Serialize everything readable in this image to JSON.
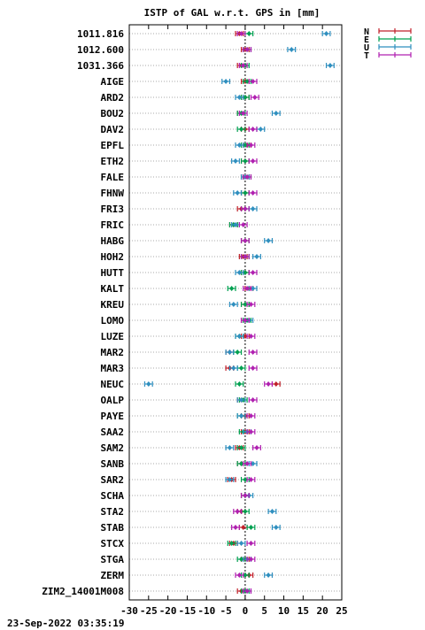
{
  "chart_data": {
    "type": "scatter",
    "title": "ISTP of GAL w.r.t. GPS in [mm]",
    "xlim": [
      -30,
      25
    ],
    "xticks": [
      -30,
      -25,
      -20,
      -15,
      -10,
      -5,
      0,
      5,
      10,
      15,
      20,
      25
    ],
    "grid": true,
    "legend_position": "top-right",
    "stations": [
      "1011.816",
      "1012.600",
      "1031.366",
      "AIGE",
      "ARD2",
      "BOU2",
      "DAV2",
      "EPFL",
      "ETH2",
      "FALE",
      "FHNW",
      "FRI3",
      "FRIC",
      "HABG",
      "HOH2",
      "HUTT",
      "KALT",
      "KREU",
      "LOMO",
      "LUZE",
      "MAR2",
      "MAR3",
      "NEUC",
      "OALP",
      "PAYE",
      "SAA2",
      "SAM2",
      "SANB",
      "SAR2",
      "SCHA",
      "STA2",
      "STAB",
      "STCX",
      "STGA",
      "ZERM",
      "ZIM2_14001M008"
    ],
    "series": [
      {
        "name": "N",
        "color": "#c0202a",
        "values": [
          -1.5,
          0.0,
          -1.0,
          0.0,
          0.0,
          -1.0,
          0.0,
          0.5,
          0.0,
          0.0,
          0.0,
          -1.0,
          -3.0,
          0.0,
          -0.5,
          0.0,
          1.0,
          0.0,
          0.0,
          0.0,
          -4.0,
          -4.0,
          8.0,
          -1.0,
          0.0,
          0.0,
          -1.5,
          -1.0,
          -3.5,
          0.0,
          -1.0,
          -0.5,
          -3.0,
          0.0,
          1.0,
          -1.0
        ]
      },
      {
        "name": "E",
        "color": "#00a050",
        "values": [
          1.0,
          0.5,
          0.0,
          0.5,
          0.0,
          -1.0,
          -1.0,
          0.0,
          0.0,
          0.5,
          0.0,
          0.0,
          -3.0,
          0.0,
          0.0,
          0.0,
          -3.5,
          0.0,
          0.5,
          -1.5,
          -2.0,
          -1.0,
          -1.5,
          -0.5,
          -1.0,
          -0.5,
          -1.0,
          -1.0,
          0.0,
          0.0,
          0.0,
          1.5,
          -3.5,
          -1.0,
          0.0,
          0.0
        ]
      },
      {
        "name": "U",
        "color": "#2f8fbf",
        "values": [
          21.0,
          12.0,
          22.0,
          -5.0,
          -1.5,
          8.0,
          4.0,
          -1.5,
          -2.5,
          0.0,
          -2.0,
          2.0,
          -2.5,
          6.0,
          3.0,
          -1.5,
          2.0,
          -3.0,
          1.0,
          -1.5,
          -4.0,
          -3.0,
          -25.0,
          -1.0,
          -1.0,
          0.5,
          -4.0,
          2.0,
          -4.0,
          1.0,
          7.0,
          8.0,
          -1.0,
          0.5,
          6.0,
          0.5
        ]
      },
      {
        "name": "T",
        "color": "#b020b0",
        "values": [
          -1.0,
          0.5,
          -0.5,
          2.0,
          2.5,
          -0.5,
          2.0,
          1.5,
          2.0,
          0.5,
          2.0,
          0.0,
          -0.5,
          0.0,
          0.0,
          2.0,
          0.5,
          1.5,
          0.0,
          1.5,
          2.0,
          2.0,
          6.0,
          2.0,
          1.5,
          1.5,
          3.0,
          0.5,
          1.5,
          0.0,
          -2.0,
          -2.5,
          1.5,
          1.5,
          -1.5,
          0.5
        ]
      }
    ],
    "error_half_width": 1.0
  },
  "footer": {
    "timestamp": "23-Sep-2022 03:35:19"
  }
}
